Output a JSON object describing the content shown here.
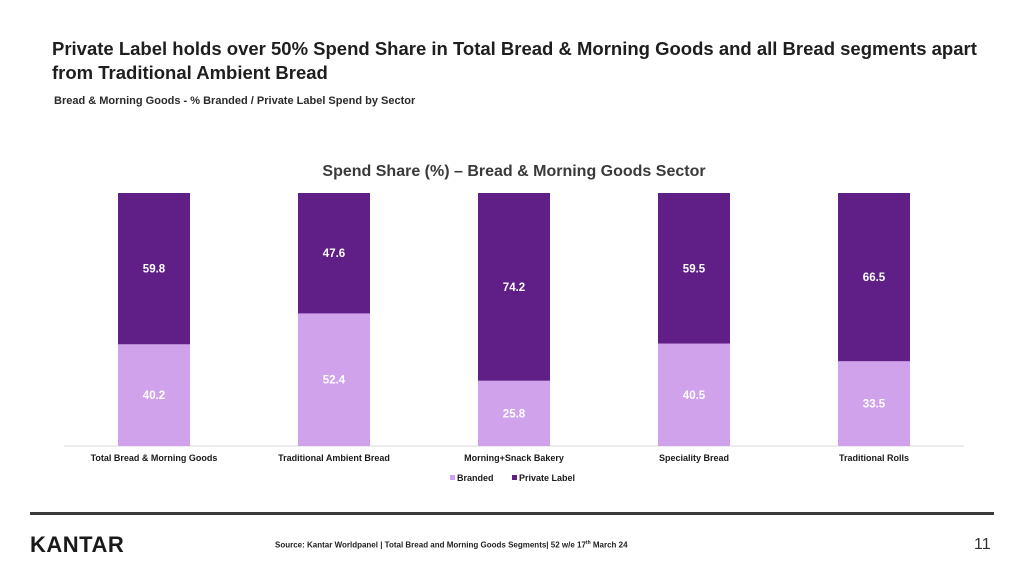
{
  "header": {
    "headline": "Private Label holds over 50% Spend Share in Total Bread & Morning Goods and all Bread segments apart from Traditional Ambient Bread",
    "subtitle": "Bread & Morning Goods - % Branded / Private Label Spend by Sector"
  },
  "chart_data": {
    "type": "stacked-bar",
    "title": "Spend Share (%) – Bread & Morning Goods Sector",
    "categories": [
      "Total Bread & Morning Goods",
      "Traditional Ambient Bread",
      "Morning+Snack Bakery",
      "Speciality Bread",
      "Traditional Rolls"
    ],
    "series": [
      {
        "name": "Branded",
        "color": "#d0a2ec",
        "values": [
          40.2,
          52.4,
          25.8,
          40.5,
          33.5
        ]
      },
      {
        "name": "Private Label",
        "color": "#5f1f86",
        "values": [
          59.8,
          47.6,
          74.2,
          59.5,
          66.5
        ]
      }
    ],
    "ylim": [
      0,
      100
    ],
    "legend": "bottom",
    "xlabel": "",
    "ylabel": ""
  },
  "footer": {
    "logo": "KANTAR",
    "source_prefix": "Source: Kantar Worldpanel | Total Bread and Morning Goods Segments| 52 w/e 17",
    "source_sup": "th",
    "source_suffix": " March 24",
    "page_number": "11"
  },
  "colors": {
    "branded": "#d0a2ec",
    "private_label": "#5f1f86",
    "label_text": "#ffffff"
  }
}
